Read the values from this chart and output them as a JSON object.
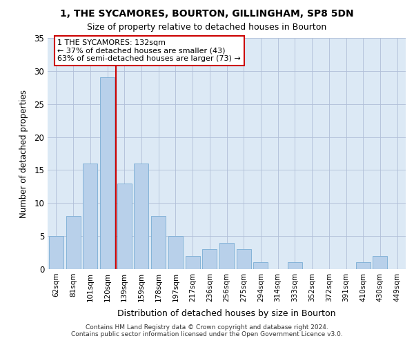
{
  "title_line1": "1, THE SYCAMORES, BOURTON, GILLINGHAM, SP8 5DN",
  "title_line2": "Size of property relative to detached houses in Bourton",
  "xlabel": "Distribution of detached houses by size in Bourton",
  "ylabel": "Number of detached properties",
  "categories": [
    "62sqm",
    "81sqm",
    "101sqm",
    "120sqm",
    "139sqm",
    "159sqm",
    "178sqm",
    "197sqm",
    "217sqm",
    "236sqm",
    "256sqm",
    "275sqm",
    "294sqm",
    "314sqm",
    "333sqm",
    "352sqm",
    "372sqm",
    "391sqm",
    "410sqm",
    "430sqm",
    "449sqm"
  ],
  "values": [
    5,
    8,
    16,
    29,
    13,
    16,
    8,
    5,
    2,
    3,
    4,
    3,
    1,
    0,
    1,
    0,
    0,
    0,
    1,
    2,
    0
  ],
  "bar_color": "#b8d0ea",
  "bar_edge_color": "#7aadd4",
  "vline_x": 3.5,
  "vline_color": "#cc0000",
  "annotation_line1": "1 THE SYCAMORES: 132sqm",
  "annotation_line2": "← 37% of detached houses are smaller (43)",
  "annotation_line3": "63% of semi-detached houses are larger (73) →",
  "annotation_box_facecolor": "#ffffff",
  "annotation_box_edgecolor": "#cc0000",
  "ylim": [
    0,
    35
  ],
  "yticks": [
    0,
    5,
    10,
    15,
    20,
    25,
    30,
    35
  ],
  "background_color": "#dce9f5",
  "footer_line1": "Contains HM Land Registry data © Crown copyright and database right 2024.",
  "footer_line2": "Contains public sector information licensed under the Open Government Licence v3.0."
}
